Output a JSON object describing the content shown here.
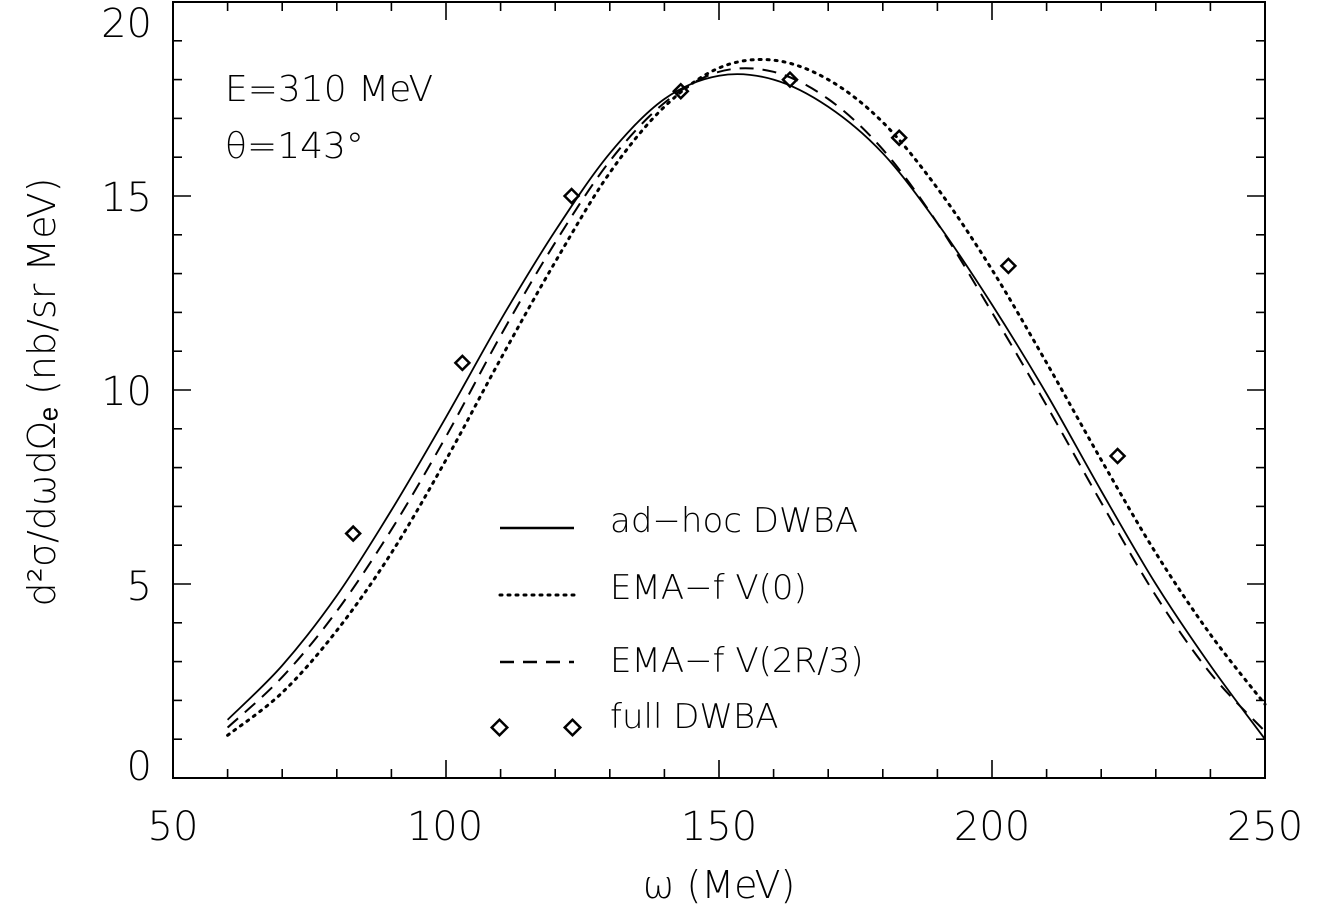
{
  "chart_data": {
    "type": "line",
    "xlabel": "ω (MeV)",
    "ylabel": "d²σ/dωdΩₑ (nb/sr MeV)",
    "xlim": [
      50,
      250
    ],
    "ylim": [
      0,
      20
    ],
    "x_ticks": [
      50,
      100,
      150,
      200,
      250
    ],
    "y_ticks": [
      0,
      5,
      10,
      15,
      20
    ],
    "annotations": [
      "E=310 MeV",
      "θ=143°"
    ],
    "legend_position": "bottom-center",
    "grid": false,
    "series": [
      {
        "name": "ad−hoc DWBA",
        "style": "solid",
        "x": [
          60,
          70,
          80,
          90,
          100,
          110,
          120,
          130,
          140,
          150,
          160,
          170,
          180,
          190,
          200,
          210,
          220,
          230,
          240,
          250
        ],
        "y": [
          1.5,
          2.9,
          4.7,
          6.9,
          9.3,
          11.8,
          14.1,
          16.1,
          17.5,
          18.1,
          18.0,
          17.3,
          16.1,
          14.3,
          12.2,
          9.9,
          7.4,
          5.0,
          2.9,
          1.0
        ]
      },
      {
        "name": "EMA−f V(0)",
        "style": "dotted",
        "x": [
          60,
          70,
          80,
          90,
          100,
          110,
          120,
          130,
          140,
          150,
          160,
          170,
          180,
          190,
          200,
          210,
          220,
          230,
          240,
          250
        ],
        "y": [
          1.1,
          2.2,
          3.8,
          5.8,
          8.2,
          10.8,
          13.3,
          15.6,
          17.3,
          18.3,
          18.5,
          18.0,
          16.9,
          15.2,
          13.1,
          10.7,
          8.2,
          5.8,
          3.7,
          1.9
        ]
      },
      {
        "name": "EMA−f V(2R/3)",
        "style": "dashed",
        "x": [
          60,
          70,
          80,
          90,
          100,
          110,
          120,
          130,
          140,
          150,
          160,
          170,
          180,
          190,
          200,
          210,
          220,
          230,
          240,
          250
        ],
        "y": [
          1.3,
          2.6,
          4.3,
          6.4,
          8.8,
          11.4,
          13.8,
          15.9,
          17.4,
          18.2,
          18.2,
          17.5,
          16.2,
          14.3,
          12.0,
          9.6,
          7.1,
          4.7,
          2.7,
          1.2
        ]
      }
    ],
    "points": {
      "name": "full DWBA",
      "marker": "diamond",
      "x": [
        83,
        103,
        123,
        143,
        163,
        183,
        203,
        223
      ],
      "y": [
        6.3,
        10.7,
        15.0,
        17.7,
        18.0,
        16.5,
        13.2,
        8.3
      ]
    }
  }
}
